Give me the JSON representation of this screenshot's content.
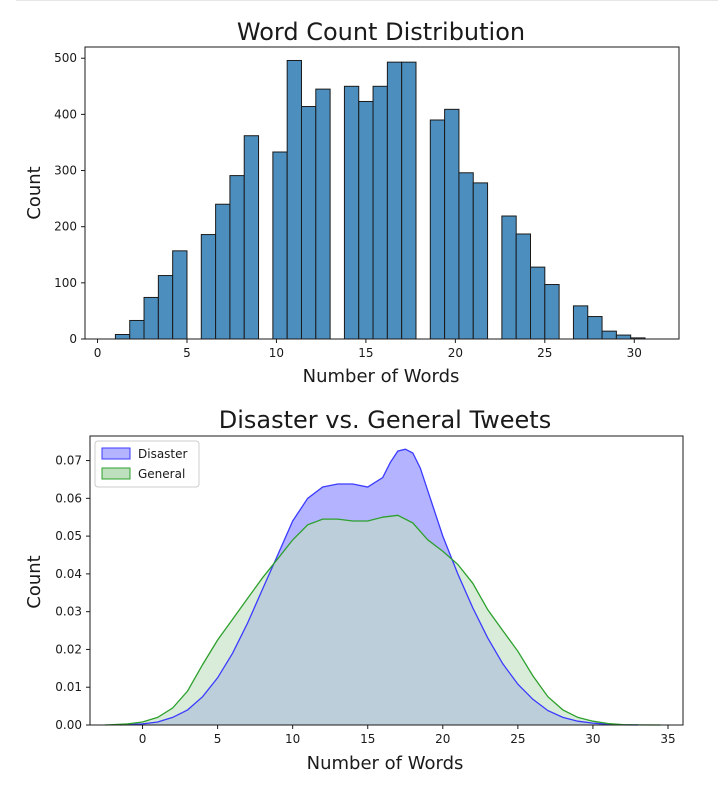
{
  "chart_data": [
    {
      "type": "bar",
      "title": "Word Count Distribution",
      "xlabel": "Number of Words",
      "ylabel": "Count",
      "xlim": [
        -0.7,
        32.5
      ],
      "ylim": [
        0,
        520
      ],
      "xticks": [
        0,
        5,
        10,
        15,
        20,
        25,
        30
      ],
      "yticks": [
        0,
        100,
        200,
        300,
        400,
        500
      ],
      "bar_color": "#4c8fbf",
      "edge_color": "#1a1a1a",
      "bins": [
        {
          "x0": 1.0,
          "x1": 1.8,
          "value": 8
        },
        {
          "x0": 1.8,
          "x1": 2.6,
          "value": 33
        },
        {
          "x0": 2.6,
          "x1": 3.4,
          "value": 74
        },
        {
          "x0": 3.4,
          "x1": 4.2,
          "value": 113
        },
        {
          "x0": 4.2,
          "x1": 5.0,
          "value": 157
        },
        {
          "x0": 5.0,
          "x1": 5.8,
          "value": 0
        },
        {
          "x0": 5.8,
          "x1": 6.6,
          "value": 186
        },
        {
          "x0": 6.6,
          "x1": 7.4,
          "value": 240
        },
        {
          "x0": 7.4,
          "x1": 8.2,
          "value": 291
        },
        {
          "x0": 8.2,
          "x1": 9.0,
          "value": 362
        },
        {
          "x0": 9.0,
          "x1": 9.8,
          "value": 0
        },
        {
          "x0": 9.8,
          "x1": 10.6,
          "value": 333
        },
        {
          "x0": 10.6,
          "x1": 11.4,
          "value": 496
        },
        {
          "x0": 11.4,
          "x1": 12.2,
          "value": 414
        },
        {
          "x0": 12.2,
          "x1": 13.0,
          "value": 445
        },
        {
          "x0": 13.0,
          "x1": 13.8,
          "value": 0
        },
        {
          "x0": 13.8,
          "x1": 14.6,
          "value": 450
        },
        {
          "x0": 14.6,
          "x1": 15.4,
          "value": 423
        },
        {
          "x0": 15.4,
          "x1": 16.2,
          "value": 450
        },
        {
          "x0": 16.2,
          "x1": 17.0,
          "value": 493
        },
        {
          "x0": 17.0,
          "x1": 17.8,
          "value": 493
        },
        {
          "x0": 17.8,
          "x1": 18.6,
          "value": 0
        },
        {
          "x0": 18.6,
          "x1": 19.4,
          "value": 390
        },
        {
          "x0": 19.4,
          "x1": 20.2,
          "value": 409
        },
        {
          "x0": 20.2,
          "x1": 21.0,
          "value": 296
        },
        {
          "x0": 21.0,
          "x1": 21.8,
          "value": 278
        },
        {
          "x0": 21.8,
          "x1": 22.6,
          "value": 0
        },
        {
          "x0": 22.6,
          "x1": 23.4,
          "value": 219
        },
        {
          "x0": 23.4,
          "x1": 24.2,
          "value": 187
        },
        {
          "x0": 24.2,
          "x1": 25.0,
          "value": 128
        },
        {
          "x0": 25.0,
          "x1": 25.8,
          "value": 97
        },
        {
          "x0": 25.8,
          "x1": 26.6,
          "value": 0
        },
        {
          "x0": 26.6,
          "x1": 27.4,
          "value": 59
        },
        {
          "x0": 27.4,
          "x1": 28.2,
          "value": 40
        },
        {
          "x0": 28.2,
          "x1": 29.0,
          "value": 14
        },
        {
          "x0": 29.0,
          "x1": 29.8,
          "value": 7
        },
        {
          "x0": 29.8,
          "x1": 30.6,
          "value": 2
        }
      ]
    },
    {
      "type": "area",
      "title": "Disaster vs. General Tweets",
      "xlabel": "Number of Words",
      "ylabel": "Count",
      "xlim": [
        -3.5,
        36
      ],
      "ylim": [
        0,
        0.0765
      ],
      "xticks": [
        0,
        5,
        10,
        15,
        20,
        25,
        30,
        35
      ],
      "yticks": [
        0.0,
        0.01,
        0.02,
        0.03,
        0.04,
        0.05,
        0.06,
        0.07
      ],
      "ytick_labels": [
        "0.00",
        "0.01",
        "0.02",
        "0.03",
        "0.04",
        "0.05",
        "0.06",
        "0.07"
      ],
      "legend_position": "upper-left",
      "series": [
        {
          "name": "Disaster",
          "line_color": "#3b3bff",
          "fill_color": "#b3b3ff",
          "x": [
            -1.5,
            0,
            1,
            2,
            3,
            4,
            5,
            6,
            7,
            8,
            9,
            10,
            11,
            12,
            13,
            14,
            15,
            16,
            16.5,
            17,
            17.5,
            18,
            18.5,
            19,
            20,
            21,
            22,
            23,
            24,
            25,
            26,
            27,
            28,
            29,
            30,
            31,
            32,
            33
          ],
          "y": [
            0.0,
            0.0003,
            0.0008,
            0.002,
            0.004,
            0.0075,
            0.0125,
            0.019,
            0.027,
            0.036,
            0.045,
            0.054,
            0.06,
            0.063,
            0.0638,
            0.0638,
            0.063,
            0.0655,
            0.0695,
            0.0725,
            0.073,
            0.072,
            0.068,
            0.062,
            0.05,
            0.04,
            0.031,
            0.023,
            0.0162,
            0.0108,
            0.0068,
            0.0038,
            0.002,
            0.001,
            0.0005,
            0.0002,
            5e-05,
            0.0
          ]
        },
        {
          "name": "General",
          "line_color": "#2ca02c",
          "fill_color": "#bfe0bf",
          "x": [
            -2.5,
            -1,
            0,
            1,
            2,
            3,
            4,
            5,
            6,
            7,
            8,
            9,
            10,
            11,
            12,
            13,
            14,
            15,
            16,
            17,
            18,
            19,
            20,
            21,
            22,
            23,
            24,
            25,
            26,
            27,
            28,
            29,
            30,
            31,
            32,
            33,
            34.5
          ],
          "y": [
            0.0,
            0.0003,
            0.0008,
            0.002,
            0.0045,
            0.009,
            0.016,
            0.0225,
            0.028,
            0.0335,
            0.039,
            0.044,
            0.049,
            0.053,
            0.0545,
            0.0545,
            0.054,
            0.054,
            0.055,
            0.0555,
            0.0535,
            0.049,
            0.046,
            0.0425,
            0.0375,
            0.0305,
            0.025,
            0.0195,
            0.013,
            0.0075,
            0.004,
            0.002,
            0.001,
            0.0004,
            0.0001,
            3e-05,
            0.0
          ]
        }
      ]
    }
  ]
}
